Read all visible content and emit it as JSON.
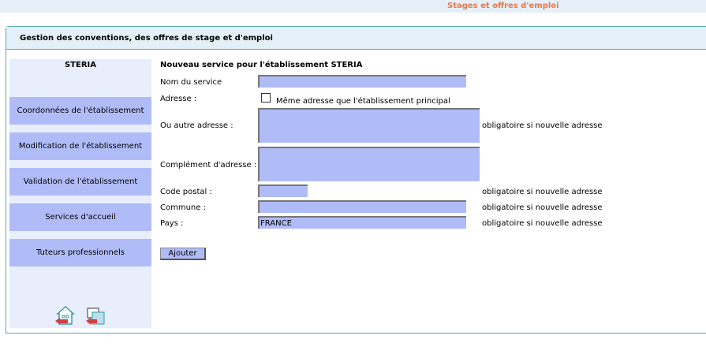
{
  "header": {
    "app_title": "Stages et offres d'emploi",
    "panel_title": "Gestion des conventions, des offres de stage et d'emploi"
  },
  "sidebar": {
    "company": "STERIA",
    "items": [
      {
        "label": "Coordonnées de l'établissement"
      },
      {
        "label": "Modification de l'établissement"
      },
      {
        "label": "Validation de l'établissement"
      },
      {
        "label": "Services d'accueil"
      },
      {
        "label": "Tuteurs professionnels"
      }
    ],
    "icons": [
      "home-back-icon",
      "establishment-back-icon"
    ]
  },
  "form": {
    "title": "Nouveau service pour l'établissement STERIA",
    "nom_label": "Nom du service",
    "nom_value": "",
    "adresse_label": "Adresse :",
    "same_address_label": "Même adresse que l'établissement principal",
    "same_address_checked": false,
    "autre_label": "Ou autre adresse :",
    "autre_value": "",
    "complement_label": "Complément d'adresse :",
    "complement_value": "",
    "cp_label": "Code postal :",
    "cp_value": "",
    "commune_label": "Commune :",
    "commune_value": "",
    "pays_label": "Pays :",
    "pays_value": "FRANCE",
    "note": "obligatoire si nouvelle adresse",
    "submit": "Ajouter"
  }
}
